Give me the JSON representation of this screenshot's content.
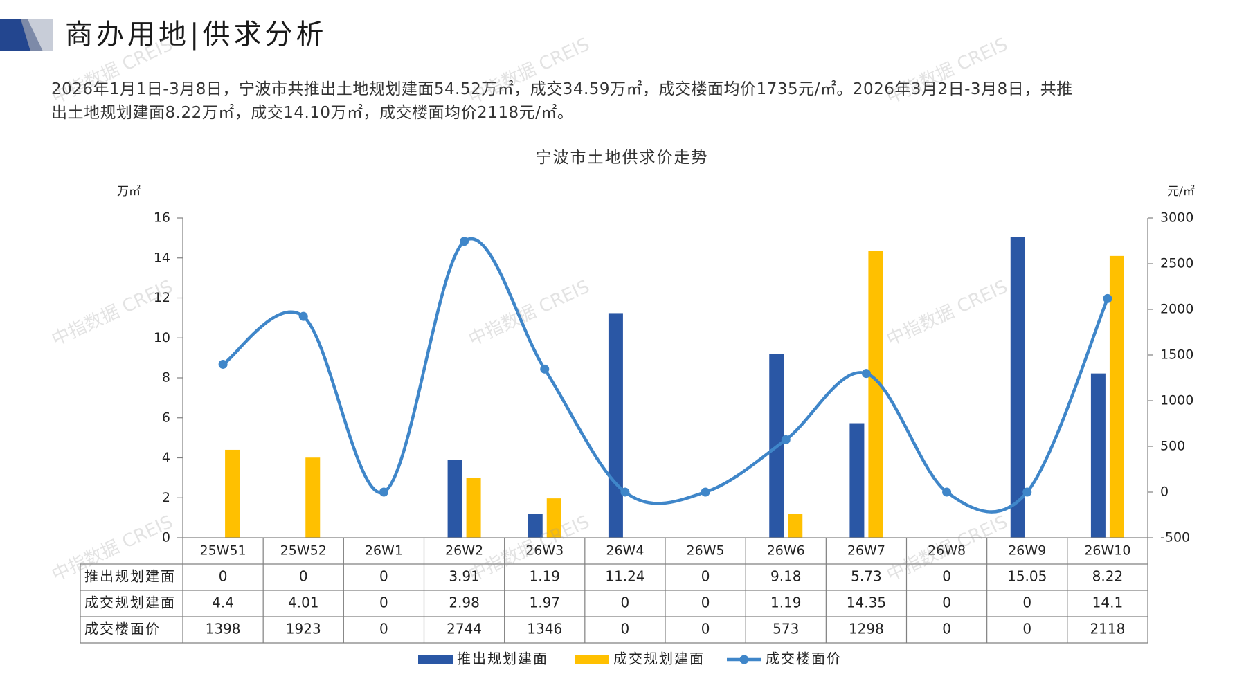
{
  "header": {
    "title": "商办用地|供求分析",
    "colors": {
      "dark": "#23468f",
      "mid": "#7d8aa8",
      "light": "#c8cdd8"
    }
  },
  "summary": {
    "line1": "2026年1月1日-3月8日，宁波市共推出土地规划建面54.52万㎡，成交34.59万㎡，成交楼面均价1735元/㎡。2026年3月2日-3月8日，共推",
    "line2": "出土地规划建面8.22万㎡，成交14.10万㎡，成交楼面均价2118元/㎡。"
  },
  "watermark": "中指数据 CREIS",
  "chart_data": {
    "type": "bar",
    "title": "宁波市土地供求价走势",
    "ylabel": "万㎡",
    "y2label": "元/㎡",
    "ylim": [
      0,
      16
    ],
    "y2lim": [
      -500,
      3000
    ],
    "yticks": [
      0,
      2,
      4,
      6,
      8,
      10,
      12,
      14,
      16
    ],
    "y2ticks": [
      -500,
      0,
      500,
      1000,
      1500,
      2000,
      2500,
      3000
    ],
    "categories": [
      "25W51",
      "25W52",
      "26W1",
      "26W2",
      "26W3",
      "26W4",
      "26W5",
      "26W6",
      "26W7",
      "26W8",
      "26W9",
      "26W10"
    ],
    "series": [
      {
        "name": "推出规划建面",
        "type": "bar",
        "axis": "left",
        "color": "#2a57a5",
        "values": [
          0,
          0,
          0,
          3.91,
          1.19,
          11.24,
          0,
          9.18,
          5.73,
          0,
          15.05,
          8.22
        ]
      },
      {
        "name": "成交规划建面",
        "type": "bar",
        "axis": "left",
        "color": "#ffc000",
        "values": [
          4.4,
          4.01,
          0,
          2.98,
          1.97,
          0,
          0,
          1.19,
          14.35,
          0,
          0,
          14.1
        ]
      },
      {
        "name": "成交楼面价",
        "type": "line",
        "axis": "right",
        "color": "#3f86c9",
        "values": [
          1398,
          1923,
          0,
          2744,
          1346,
          0,
          0,
          573,
          1298,
          0,
          0,
          2118
        ]
      }
    ],
    "table_rows": [
      {
        "label": "推出规划建面",
        "cells": [
          "0",
          "0",
          "0",
          "3.91",
          "1.19",
          "11.24",
          "0",
          "9.18",
          "5.73",
          "0",
          "15.05",
          "8.22"
        ]
      },
      {
        "label": "成交规划建面",
        "cells": [
          "4.4",
          "4.01",
          "0",
          "2.98",
          "1.97",
          "0",
          "0",
          "1.19",
          "14.35",
          "0",
          "0",
          "14.1"
        ]
      },
      {
        "label": "成交楼面价",
        "cells": [
          "1398",
          "1923",
          "0",
          "2744",
          "1346",
          "0",
          "0",
          "573",
          "1298",
          "0",
          "0",
          "2118"
        ]
      }
    ],
    "legend_position": "bottom"
  }
}
